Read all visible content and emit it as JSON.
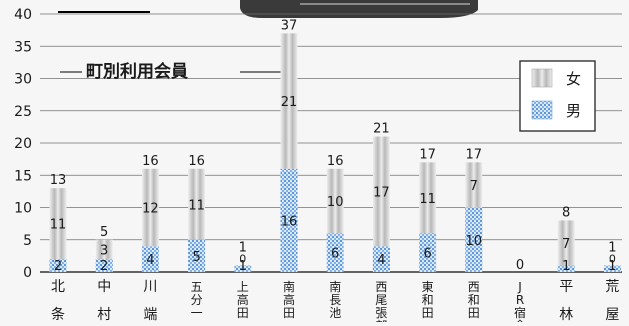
{
  "chart_data": {
    "type": "bar",
    "stacked": true,
    "title": "町別利用会員",
    "ylim": [
      0,
      40
    ],
    "y_ticks": [
      0,
      5,
      10,
      15,
      20,
      25,
      30,
      35,
      40
    ],
    "grid": true,
    "legend_position": "top-right",
    "categories": [
      "北条",
      "中村",
      "川端",
      "五分一",
      "上高田",
      "南高田",
      "南長池",
      "西尾張部",
      "東和田",
      "西和田",
      "JR宿舎",
      "平林",
      "荒屋"
    ],
    "series": [
      {
        "name": "男",
        "values": [
          2,
          2,
          4,
          5,
          1,
          16,
          6,
          4,
          6,
          10,
          0,
          1,
          1
        ]
      },
      {
        "name": "女",
        "values": [
          11,
          3,
          12,
          11,
          0,
          21,
          10,
          17,
          11,
          7,
          0,
          7,
          0
        ]
      }
    ],
    "totals": [
      13,
      5,
      16,
      16,
      1,
      37,
      16,
      21,
      17,
      17,
      0,
      8,
      1
    ],
    "colors": {
      "female": "#c9c9c9",
      "male": "#8fb8e6",
      "text": "#1a1a1a",
      "grid": "#707070",
      "background": "#f6f6f6"
    }
  }
}
